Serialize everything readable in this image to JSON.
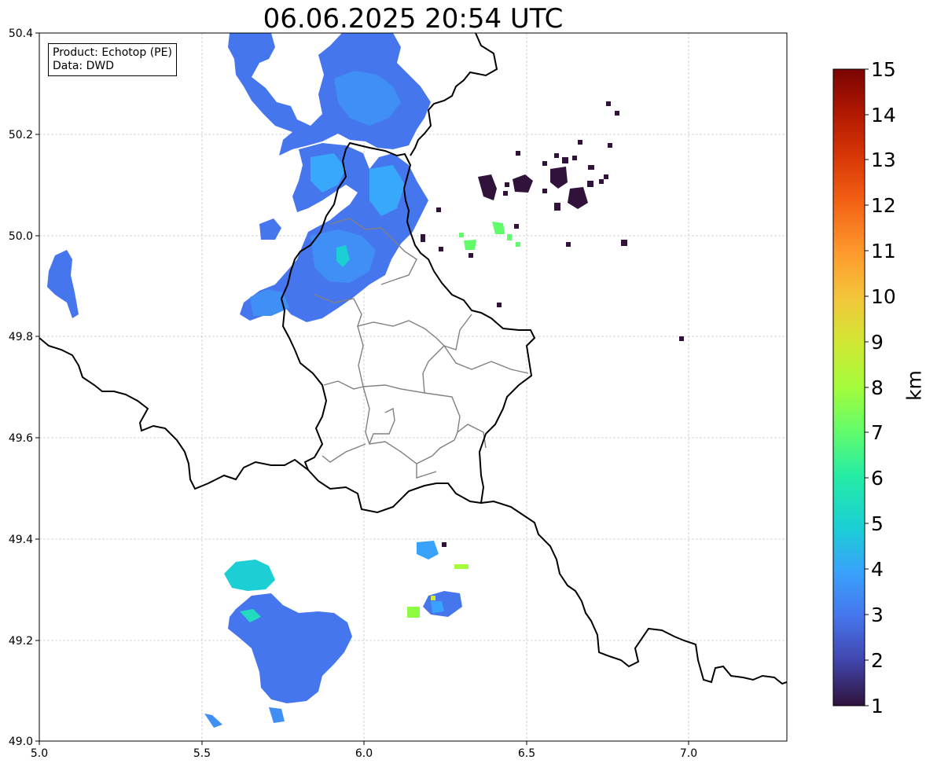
{
  "title": "06.06.2025 20:54 UTC",
  "info": {
    "product_line": "Product: Echotop (PE)",
    "data_line": "Data: DWD"
  },
  "axes": {
    "x_ticks": [
      "5.0",
      "5.5",
      "6.0",
      "6.5",
      "7.0"
    ],
    "y_ticks": [
      "50.4",
      "50.2",
      "50.0",
      "49.8",
      "49.6",
      "49.4",
      "49.2",
      "49.0"
    ],
    "lon_range": [
      5.0,
      7.3
    ],
    "lat_range": [
      49.0,
      50.4
    ],
    "grid": true
  },
  "colorbar": {
    "unit": "km",
    "min": 1,
    "max": 15,
    "ticks": [
      "1",
      "2",
      "3",
      "4",
      "5",
      "6",
      "7",
      "8",
      "9",
      "10",
      "11",
      "12",
      "13",
      "14",
      "15"
    ],
    "colormap": "turbo",
    "stops": [
      "#30123b",
      "#4145ab",
      "#4675ed",
      "#39a2fc",
      "#1bcfd4",
      "#24eca6",
      "#61fc6c",
      "#a4fc3b",
      "#d1e834",
      "#f3c63a",
      "#fe9b2d",
      "#f36315",
      "#d93806",
      "#b11901",
      "#7a0403"
    ]
  },
  "colors": {
    "border": "#000000",
    "admin_border": "#808080",
    "grid": "#c8c8c8"
  },
  "echo_cells": [
    {
      "lon": 5.75,
      "lat": 50.27,
      "top_km": 3.2
    },
    {
      "lon": 5.95,
      "lat": 50.27,
      "top_km": 3.5
    },
    {
      "lon": 5.88,
      "lat": 50.1,
      "top_km": 3.8
    },
    {
      "lon": 6.08,
      "lat": 50.1,
      "top_km": 3.9
    },
    {
      "lon": 5.93,
      "lat": 49.94,
      "top_km": 3.6
    },
    {
      "lon": 5.73,
      "lat": 49.87,
      "top_km": 3.8
    },
    {
      "lon": 5.09,
      "lat": 49.9,
      "top_km": 3.4
    },
    {
      "lon": 5.65,
      "lat": 49.32,
      "top_km": 5.0
    },
    {
      "lon": 5.8,
      "lat": 49.18,
      "top_km": 3.2
    },
    {
      "lon": 6.2,
      "lat": 49.38,
      "top_km": 3.5
    },
    {
      "lon": 6.25,
      "lat": 49.27,
      "top_km": 3.6
    },
    {
      "lon": 6.42,
      "lat": 50.02,
      "top_km": 7.2
    },
    {
      "lon": 6.31,
      "lat": 49.98,
      "top_km": 7.4
    },
    {
      "lon": 6.15,
      "lat": 49.26,
      "top_km": 7.8
    },
    {
      "lon": 6.3,
      "lat": 49.35,
      "top_km": 8.5
    },
    {
      "lon": 6.62,
      "lat": 50.1,
      "top_km": 1.2
    },
    {
      "lon": 6.98,
      "lat": 49.8,
      "top_km": 1.3
    }
  ]
}
